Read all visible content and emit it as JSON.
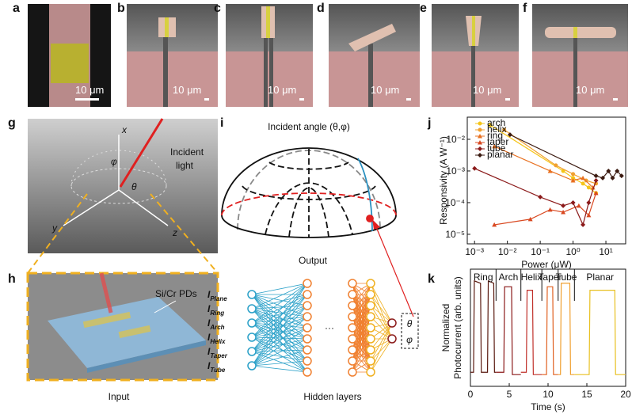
{
  "panel_labels": [
    "a",
    "b",
    "c",
    "d",
    "e",
    "f",
    "g",
    "h",
    "i",
    "j",
    "k"
  ],
  "scale_bars": [
    "10 μm",
    "10 μm",
    "10 μm",
    "10 μm",
    "10 μm",
    "10 μm"
  ],
  "g": {
    "axes": [
      "x",
      "y",
      "z"
    ],
    "phi": "φ",
    "theta": "θ",
    "incident": [
      "Incident",
      "light"
    ]
  },
  "h": {
    "pds": "Si/Cr PDs",
    "caption": "Input"
  },
  "i": {
    "title": "Incident angle (θ,φ)",
    "caption": "Output"
  },
  "network": {
    "inputs": [
      {
        "main": "I",
        "sub": "Plane"
      },
      {
        "main": "I",
        "sub": "Ring"
      },
      {
        "main": "I",
        "sub": "Arch"
      },
      {
        "main": "I",
        "sub": "Helix"
      },
      {
        "main": "I",
        "sub": "Taper"
      },
      {
        "main": "I",
        "sub": "Tube"
      }
    ],
    "ellipsis": "···",
    "outputs": [
      "θ",
      "φ"
    ],
    "caption": "Hidden layers"
  },
  "chart_data": [
    {
      "type": "line",
      "log_x": true,
      "log_y": true,
      "legend": "upper left",
      "xlabel": "Power (μW)",
      "ylabel": "Responsivity (A W⁻¹)",
      "xlim": [
        0.0006,
        40
      ],
      "ylim": [
        5e-06,
        0.05
      ],
      "xticks": [
        {
          "value": 0.001,
          "label": "10⁻³"
        },
        {
          "value": 0.01,
          "label": "10⁻²"
        },
        {
          "value": 0.1,
          "label": "10⁻¹"
        },
        {
          "value": 1,
          "label": "10⁰"
        },
        {
          "value": 10,
          "label": "10¹"
        }
      ],
      "yticks": [
        {
          "value": 1e-05,
          "label": "10⁻⁵"
        },
        {
          "value": 0.0001,
          "label": "10⁻⁴"
        },
        {
          "value": 0.001,
          "label": "10⁻³"
        },
        {
          "value": 0.01,
          "label": "10⁻²"
        }
      ],
      "series": [
        {
          "name": "arch",
          "color": "#f5c518",
          "marker": "circle",
          "x": [
            0.003,
            0.5,
            1,
            2,
            3,
            5
          ],
          "values": [
            0.028,
            0.001,
            0.0006,
            0.0004,
            0.0003,
            0.0002
          ]
        },
        {
          "name": "helix",
          "color": "#f0a030",
          "marker": "circle",
          "x": [
            0.008,
            0.3,
            1,
            2.5,
            5
          ],
          "values": [
            0.02,
            0.0015,
            0.0008,
            0.0005,
            0.0004
          ]
        },
        {
          "name": "ring",
          "color": "#e87020",
          "marker": "triangle",
          "x": [
            0.004,
            0.2,
            1,
            2,
            4
          ],
          "values": [
            0.006,
            0.001,
            0.0005,
            0.0006,
            0.0003
          ]
        },
        {
          "name": "taper",
          "color": "#d94820",
          "marker": "triangle",
          "x": [
            0.004,
            0.05,
            0.2,
            0.5,
            1.5,
            3,
            5
          ],
          "values": [
            2e-05,
            3e-05,
            6e-05,
            5e-05,
            8e-05,
            4e-05,
            0.0002
          ]
        },
        {
          "name": "tube",
          "color": "#8b1a1a",
          "marker": "diamond",
          "x": [
            0.001,
            0.1,
            0.5,
            1,
            2,
            3,
            5
          ],
          "values": [
            0.0012,
            0.00015,
            8e-05,
            0.0001,
            2e-05,
            0.0001,
            0.0005
          ]
        },
        {
          "name": "planar",
          "color": "#3b1a10",
          "marker": "diamond",
          "x": [
            0.012,
            5,
            8,
            12,
            16,
            22,
            30
          ],
          "values": [
            0.014,
            0.0007,
            0.0006,
            0.001,
            0.0006,
            0.001,
            0.0007
          ]
        }
      ]
    },
    {
      "type": "line",
      "series_labels": "top",
      "xlabel": "Time (s)",
      "ylabel": [
        "Normalized",
        "Photocurrent (arb. units)"
      ],
      "xlim": [
        0,
        20
      ],
      "ylim": [
        0,
        1
      ],
      "xticks": [
        0,
        5,
        10,
        15,
        20
      ],
      "series": [
        {
          "name": "Ring",
          "color": "#5a1a10",
          "x": [
            0,
            0.4,
            0.5,
            1.3,
            1.4,
            2.2,
            2.3,
            3.0,
            3.1,
            3.3
          ],
          "values": [
            0.12,
            0.12,
            0.9,
            0.88,
            0.12,
            0.12,
            0.9,
            0.88,
            0.12,
            0.12
          ]
        },
        {
          "name": "Arch",
          "color": "#8b1a1a",
          "x": [
            3.3,
            4.3,
            4.4,
            5.3,
            5.4,
            6.5
          ],
          "values": [
            0.12,
            0.12,
            0.85,
            0.85,
            0.1,
            0.1
          ]
        },
        {
          "name": "Helix",
          "color": "#c0302a",
          "x": [
            6.5,
            7.2,
            7.3,
            8.0,
            8.1,
            9.2
          ],
          "values": [
            0.12,
            0.12,
            0.82,
            0.82,
            0.1,
            0.1
          ]
        },
        {
          "name": "Taper",
          "color": "#e06020",
          "x": [
            9.2,
            9.8,
            9.9,
            10.6,
            10.7,
            11.3
          ],
          "values": [
            0.1,
            0.1,
            0.85,
            0.85,
            0.1,
            0.1
          ]
        },
        {
          "name": "Tube",
          "color": "#f0a030",
          "x": [
            11.3,
            11.6,
            11.7,
            12.8,
            12.9,
            13.4
          ],
          "values": [
            0.1,
            0.1,
            0.88,
            0.88,
            0.1,
            0.1
          ]
        },
        {
          "name": "Planar",
          "color": "#e8c020",
          "x": [
            13.4,
            15.3,
            15.4,
            18.6,
            18.7,
            20
          ],
          "values": [
            0.1,
            0.1,
            0.82,
            0.82,
            0.1,
            0.1
          ]
        }
      ]
    }
  ]
}
